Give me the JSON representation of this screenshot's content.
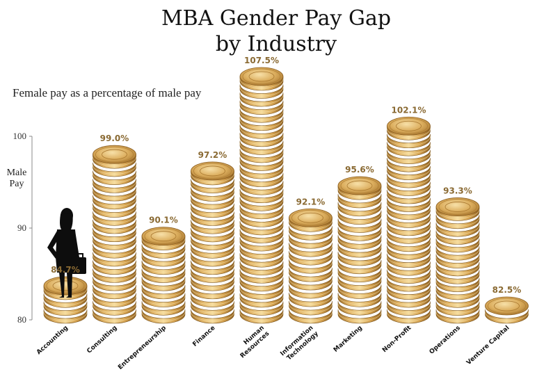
{
  "chart_data": {
    "type": "bar",
    "title_line1": "MBA Gender Pay Gap",
    "title_line2": "by Industry",
    "subtitle": "Female pay as a percentage of male pay",
    "ylabel_line1": "Male",
    "ylabel_line2": "Pay",
    "ylim": [
      80,
      100
    ],
    "yticks": [
      80,
      90,
      100
    ],
    "ytick_labels": [
      "80",
      "90",
      "100"
    ],
    "categories": [
      [
        "Accounting"
      ],
      [
        "Consulting"
      ],
      [
        "Entrepreneurship"
      ],
      [
        "Finance"
      ],
      [
        "Human",
        "Resources"
      ],
      [
        "Information",
        "Technology"
      ],
      [
        "Marketing"
      ],
      [
        "Non-Profit"
      ],
      [
        "Operations"
      ],
      [
        "Venture Capital"
      ]
    ],
    "values": [
      84.7,
      99.0,
      90.1,
      97.2,
      107.5,
      92.1,
      95.6,
      102.1,
      93.3,
      82.5
    ],
    "value_labels": [
      "84.7%",
      "99.0%",
      "90.1%",
      "97.2%",
      "107.5%",
      "92.1%",
      "95.6%",
      "102.1%",
      "93.3%",
      "82.5%"
    ],
    "colors": {
      "coin_light": "#f3d28e",
      "coin_mid": "#d8a851",
      "coin_dark": "#9a6a26",
      "label": "#8a6a33"
    },
    "icons": {
      "accounting_overlay": "businesswoman-silhouette-icon"
    }
  }
}
